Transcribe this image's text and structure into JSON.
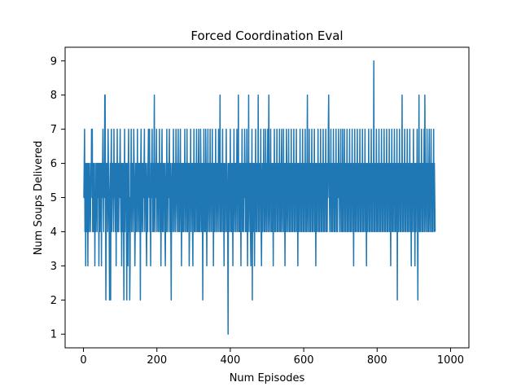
{
  "chart_data": {
    "type": "line",
    "title": "Forced Coordination Eval",
    "xlabel": "Num Episodes",
    "ylabel": "Num Soups Delivered",
    "xlim": [
      -50,
      1050
    ],
    "ylim": [
      0.6,
      9.4
    ],
    "xticks": [
      0,
      200,
      400,
      600,
      800,
      1000
    ],
    "yticks": [
      1,
      2,
      3,
      4,
      5,
      6,
      7,
      8,
      9
    ],
    "grid": false,
    "legend": "none",
    "series": [
      {
        "color": "#1f77b4",
        "x_start": 0,
        "x_step": 1,
        "values": [
          5,
          5,
          6,
          7,
          4,
          6,
          3,
          6,
          5,
          4,
          6,
          5,
          3,
          6,
          5,
          4,
          6,
          5,
          5,
          4,
          6,
          5,
          7,
          6,
          7,
          4,
          5,
          6,
          4,
          5,
          6,
          3,
          5,
          4,
          6,
          6,
          5,
          4,
          6,
          5,
          6,
          6,
          3,
          5,
          6,
          4,
          6,
          5,
          6,
          3,
          6,
          5,
          6,
          7,
          5,
          4,
          6,
          5,
          8,
          8,
          5,
          2,
          4,
          6,
          5,
          6,
          4,
          7,
          6,
          5,
          4,
          2,
          5,
          6,
          2,
          6,
          7,
          4,
          6,
          5,
          6,
          5,
          4,
          7,
          5,
          6,
          5,
          4,
          6,
          3,
          6,
          5,
          7,
          4,
          6,
          5,
          4,
          6,
          5,
          6,
          7,
          5,
          4,
          6,
          3,
          5,
          6,
          4,
          6,
          5,
          2,
          5,
          7,
          4,
          6,
          5,
          6,
          4,
          2,
          6,
          5,
          3,
          6,
          7,
          4,
          5,
          2,
          3,
          6,
          5,
          7,
          4,
          6,
          5,
          6,
          4,
          5,
          7,
          6,
          5,
          3,
          4,
          6,
          5,
          4,
          6,
          5,
          7,
          4,
          6,
          5,
          6,
          4,
          6,
          5,
          2,
          6,
          7,
          4,
          5,
          6,
          5,
          4,
          6,
          5,
          6,
          7,
          4,
          6,
          5,
          6,
          4,
          3,
          5,
          6,
          4,
          6,
          7,
          6,
          5,
          7,
          4,
          5,
          3,
          6,
          5,
          6,
          7,
          4,
          6,
          5,
          4,
          6,
          8,
          5,
          4,
          6,
          5,
          6,
          7,
          4,
          6,
          5,
          6,
          4,
          6,
          5,
          7,
          4,
          5,
          6,
          3,
          5,
          6,
          7,
          4,
          6,
          5,
          4,
          6,
          5,
          6,
          4,
          3,
          5,
          6,
          4,
          7,
          5,
          6,
          4,
          6,
          5,
          6,
          7,
          4,
          5,
          6,
          4,
          2,
          5,
          6,
          4,
          6,
          5,
          7,
          4,
          6,
          5,
          6,
          4,
          5,
          7,
          6,
          5,
          4,
          6,
          5,
          7,
          4,
          6,
          4,
          5,
          6,
          7,
          4,
          6,
          3,
          5,
          6,
          4,
          5,
          6,
          4,
          6,
          5,
          7,
          4,
          6,
          5,
          6,
          4,
          7,
          5,
          4,
          6,
          5,
          6,
          3,
          4,
          6,
          5,
          7,
          4,
          6,
          5,
          6,
          4,
          3,
          6,
          5,
          7,
          4,
          5,
          6,
          4,
          6,
          5,
          7,
          4,
          6,
          5,
          4,
          6,
          7,
          4,
          6,
          5,
          4,
          7,
          6,
          5,
          4,
          6,
          5,
          2,
          6,
          5,
          7,
          4,
          6,
          5,
          4,
          7,
          6,
          5,
          3,
          6,
          5,
          7,
          4,
          6,
          5,
          6,
          4,
          7,
          5,
          6,
          4,
          6,
          5,
          7,
          4,
          6,
          3,
          5,
          6,
          4,
          6,
          5,
          7,
          4,
          6,
          5,
          6,
          4,
          6,
          5,
          7,
          4,
          6,
          5,
          8,
          4,
          6,
          5,
          4,
          6,
          5,
          7,
          4,
          6,
          5,
          3,
          6,
          5,
          4,
          6,
          5,
          7,
          4,
          6,
          5,
          4,
          1,
          6,
          5,
          4,
          6,
          5,
          7,
          4,
          6,
          5,
          4,
          6,
          5,
          3,
          6,
          5,
          7,
          4,
          6,
          5,
          6,
          4,
          6,
          5,
          7,
          4,
          6,
          5,
          8,
          4,
          6,
          5,
          4,
          6,
          5,
          3,
          6,
          5,
          7,
          4,
          6,
          5,
          4,
          6,
          5,
          7,
          6,
          4,
          5,
          6,
          4,
          7,
          5,
          3,
          6,
          5,
          8,
          4,
          6,
          5,
          6,
          4,
          3,
          6,
          5,
          7,
          2,
          6,
          5,
          4,
          6,
          5,
          3,
          6,
          5,
          7,
          4,
          6,
          5,
          4,
          6,
          5,
          8,
          4,
          6,
          5,
          4,
          6,
          5,
          7,
          4,
          3,
          5,
          6,
          4,
          6,
          5,
          7,
          4,
          6,
          5,
          4,
          7,
          6,
          5,
          4,
          6,
          5,
          7,
          4,
          6,
          8,
          5,
          4,
          6,
          5,
          7,
          4,
          6,
          5,
          4,
          6,
          5,
          3,
          6,
          5,
          7,
          4,
          6,
          5,
          4,
          6,
          5,
          7,
          4,
          6,
          5,
          4,
          6,
          5,
          7,
          4,
          6,
          5,
          4,
          6,
          7,
          5,
          4,
          6,
          5,
          7,
          4,
          6,
          5,
          3,
          6,
          5,
          4,
          7,
          6,
          5,
          4,
          6,
          5,
          7,
          4,
          6,
          5,
          4,
          6,
          5,
          7,
          4,
          6,
          5,
          4,
          6,
          5,
          7,
          4,
          6,
          5,
          4,
          6,
          5,
          7,
          4,
          6,
          5,
          3,
          6,
          5,
          4,
          6,
          5,
          7,
          4,
          6,
          5,
          4,
          6,
          5,
          7,
          4,
          6,
          5,
          4,
          6,
          5,
          7,
          4,
          6,
          5,
          4,
          6,
          8,
          5,
          4,
          6,
          5,
          7,
          4,
          6,
          5,
          4,
          6,
          5,
          7,
          4,
          6,
          5,
          4,
          6,
          5,
          7,
          4,
          6,
          5,
          3,
          6,
          5,
          4,
          6,
          5,
          7,
          4,
          6,
          5,
          4,
          6,
          5,
          7,
          4,
          6,
          5,
          4,
          6,
          5,
          7,
          4,
          6,
          5,
          4,
          6,
          5,
          7,
          4,
          6,
          5,
          4,
          6,
          5,
          7,
          8,
          6,
          5,
          4,
          6,
          5,
          7,
          4,
          6,
          5,
          4,
          6,
          5,
          7,
          4,
          6,
          5,
          4,
          6,
          5,
          7,
          4,
          6,
          5,
          4,
          6,
          5,
          7,
          6,
          5,
          4,
          6,
          5,
          7,
          4,
          6,
          5,
          4,
          7,
          5,
          4,
          6,
          5,
          7,
          4,
          6,
          5,
          4,
          6,
          5,
          7,
          4,
          6,
          5,
          4,
          6,
          5,
          7,
          4,
          6,
          5,
          4,
          6,
          5,
          7,
          4,
          6,
          5,
          3,
          6,
          5,
          7,
          4,
          6,
          5,
          4,
          6,
          5,
          7,
          4,
          6,
          5,
          4,
          6,
          5,
          7,
          4,
          6,
          5,
          4,
          6,
          5,
          7,
          4,
          6,
          5,
          4,
          6,
          5,
          7,
          4,
          6,
          5,
          3,
          6,
          5,
          4,
          6,
          5,
          7,
          4,
          6,
          5,
          4,
          6,
          5,
          7,
          4,
          6,
          5,
          4,
          6,
          5,
          9,
          4,
          6,
          5,
          4,
          6,
          5,
          7,
          4,
          6,
          5,
          4,
          6,
          5,
          7,
          4,
          6,
          5,
          4,
          6,
          5,
          7,
          4,
          6,
          5,
          4,
          6,
          5,
          7,
          4,
          6,
          5,
          4,
          6,
          5,
          7,
          4,
          6,
          5,
          4,
          6,
          5,
          7,
          4,
          6,
          5,
          3,
          6,
          5,
          7,
          4,
          6,
          5,
          4,
          6,
          5,
          7,
          4,
          6,
          5,
          4,
          6,
          5,
          7,
          2,
          6,
          5,
          4,
          6,
          5,
          7,
          4,
          6,
          5,
          4,
          6,
          5,
          8,
          4,
          6,
          5,
          4,
          6,
          5,
          7,
          4,
          6,
          5,
          4,
          6,
          5,
          7,
          4,
          6,
          5,
          4,
          6,
          5,
          7,
          4,
          6,
          5,
          3,
          6,
          5,
          4,
          6,
          5,
          7,
          4,
          6,
          5,
          3,
          6,
          5,
          4,
          6,
          5,
          7,
          4,
          2,
          6,
          5,
          8,
          4,
          6,
          5,
          4,
          6,
          5,
          7,
          4,
          6,
          5,
          4,
          6,
          5,
          7,
          4,
          8,
          6,
          5,
          4,
          6,
          5,
          7,
          4,
          6,
          5,
          4,
          6,
          7,
          5,
          4,
          6,
          5,
          7,
          4,
          6,
          5,
          4,
          6,
          5,
          7,
          4,
          6,
          5,
          4
        ]
      }
    ]
  }
}
